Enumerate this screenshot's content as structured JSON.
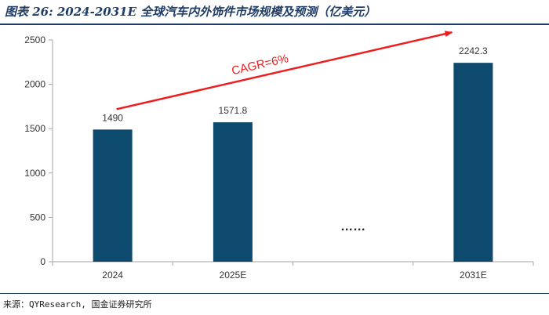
{
  "figure": {
    "title": "图表 26: 2024-2031E 全球汽车内外饰件市场规模及预测（亿美元）",
    "source": "来源：QYResearch, 国金证券研究所"
  },
  "chart_data": {
    "type": "bar",
    "title": "",
    "categories": [
      "2024",
      "2025E",
      "",
      "2031E"
    ],
    "series": [
      {
        "values": [
          1490,
          1571.8,
          null,
          2242.3
        ]
      }
    ],
    "data_labels": [
      "1490",
      "1571.8",
      "",
      "2242.3"
    ],
    "ylim": [
      0,
      2500
    ],
    "yticks": [
      0,
      500,
      1000,
      1500,
      2000,
      2500
    ],
    "grid": false,
    "legend": "none",
    "ellipsis": "……",
    "annotation": {
      "text": "CAGR=6%",
      "from": "2024",
      "to": "2031E"
    },
    "colors": {
      "bar": "#0d4a6e",
      "arrow": "#ee1c1c",
      "axis": "#a6a6a6",
      "text": "#333333"
    }
  }
}
